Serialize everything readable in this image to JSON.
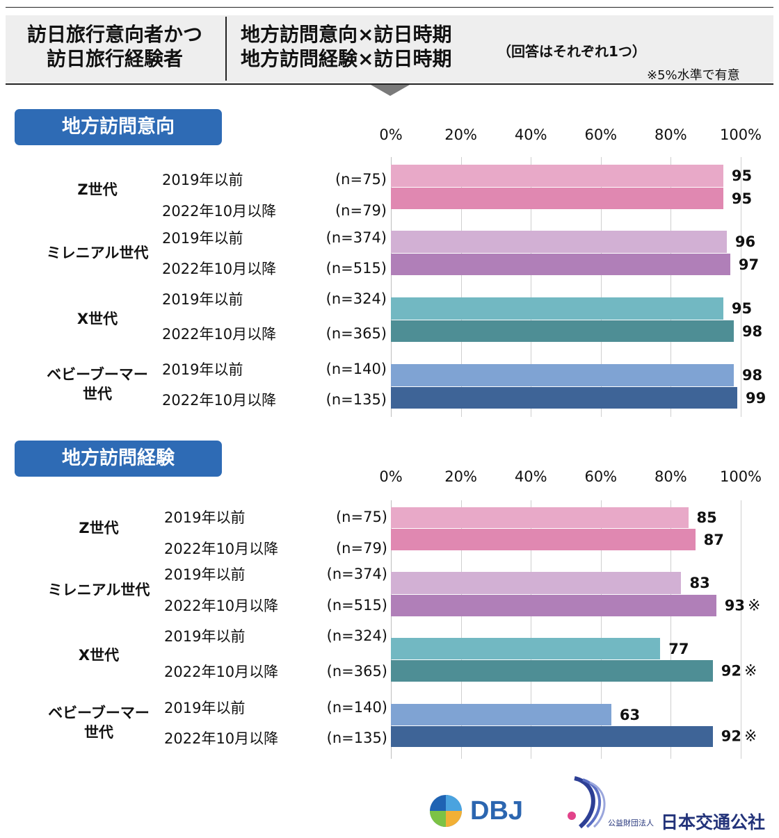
{
  "header": {
    "left_line1": "訪日旅行意向者かつ",
    "left_line2": "訪日旅行経験者",
    "mid_line1": "地方訪問意向×訪日時期",
    "mid_line2": "地方訪問経験×訪日時期",
    "note": "（回答はそれぞれ1つ）",
    "significance": "※5%水準で有意"
  },
  "chart_data": [
    {
      "type": "bar",
      "orientation": "horizontal",
      "title": "地方訪問意向",
      "xlim": [
        0,
        100
      ],
      "ticks": [
        "0%",
        "20%",
        "40%",
        "60%",
        "80%",
        "100%"
      ],
      "groups": [
        {
          "name": "Z世代",
          "rows": [
            {
              "period": "2019年以前",
              "n": "(n=75)",
              "value": 95,
              "label": "95",
              "mark": "",
              "color": "#e8a9c8"
            },
            {
              "period": "2022年10月以降",
              "n": "(n=79)",
              "value": 95,
              "label": "95",
              "mark": "",
              "color": "#e088b1"
            }
          ]
        },
        {
          "name": "ミレニアル世代",
          "rows": [
            {
              "period": "2019年以前",
              "n": "(n=374)",
              "value": 96,
              "label": "96",
              "mark": "",
              "color": "#d2b0d4"
            },
            {
              "period": "2022年10月以降",
              "n": "(n=515)",
              "value": 97,
              "label": "97",
              "mark": "",
              "color": "#b07fb8"
            }
          ]
        },
        {
          "name": "X世代",
          "rows": [
            {
              "period": "2019年以前",
              "n": "(n=324)",
              "value": 95,
              "label": "95",
              "mark": "",
              "color": "#72b8c2"
            },
            {
              "period": "2022年10月以降",
              "n": "(n=365)",
              "value": 98,
              "label": "98",
              "mark": "",
              "color": "#4e8e95"
            }
          ]
        },
        {
          "name": "ベビーブーマー\n世代",
          "rows": [
            {
              "period": "2019年以前",
              "n": "(n=140)",
              "value": 98,
              "label": "98",
              "mark": "",
              "color": "#7fa3d3"
            },
            {
              "period": "2022年10月以降",
              "n": "(n=135)",
              "value": 99,
              "label": "99",
              "mark": "",
              "color": "#3e6497"
            }
          ]
        }
      ]
    },
    {
      "type": "bar",
      "orientation": "horizontal",
      "title": "地方訪問経験",
      "xlim": [
        0,
        100
      ],
      "ticks": [
        "0%",
        "20%",
        "40%",
        "60%",
        "80%",
        "100%"
      ],
      "groups": [
        {
          "name": "Z世代",
          "rows": [
            {
              "period": "2019年以前",
              "n": "(n=75)",
              "value": 85,
              "label": "85",
              "mark": "",
              "color": "#e8a9c8"
            },
            {
              "period": "2022年10月以降",
              "n": "(n=79)",
              "value": 87,
              "label": "87",
              "mark": "",
              "color": "#e088b1"
            }
          ]
        },
        {
          "name": "ミレニアル世代",
          "rows": [
            {
              "period": "2019年以前",
              "n": "(n=374)",
              "value": 83,
              "label": "83",
              "mark": "",
              "color": "#d2b0d4"
            },
            {
              "period": "2022年10月以降",
              "n": "(n=515)",
              "value": 93,
              "label": "93",
              "mark": "※",
              "color": "#b07fb8"
            }
          ]
        },
        {
          "name": "X世代",
          "rows": [
            {
              "period": "2019年以前",
              "n": "(n=324)",
              "value": 77,
              "label": "77",
              "mark": "",
              "color": "#72b8c2"
            },
            {
              "period": "2022年10月以降",
              "n": "(n=365)",
              "value": 92,
              "label": "92",
              "mark": "※",
              "color": "#4e8e95"
            }
          ]
        },
        {
          "name": "ベビーブーマー\n世代",
          "rows": [
            {
              "period": "2019年以前",
              "n": "(n=140)",
              "value": 63,
              "label": "63",
              "mark": "",
              "color": "#7fa3d3"
            },
            {
              "period": "2022年10月以降",
              "n": "(n=135)",
              "value": 92,
              "label": "92",
              "mark": "※",
              "color": "#3e6497"
            }
          ]
        }
      ]
    }
  ],
  "logos": {
    "dbj": "DBJ",
    "jtb_org": "公益財団法人",
    "jtb_name": "日本交通公社"
  }
}
